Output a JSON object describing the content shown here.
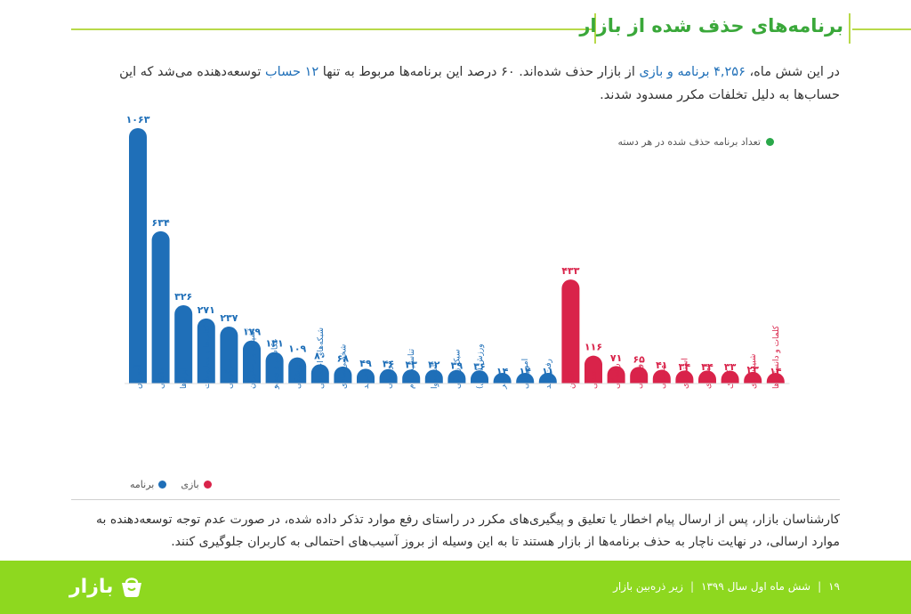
{
  "header": {
    "title": "برنامه‌های حذف شده از بازار"
  },
  "intro": {
    "part1": "در این شش ماه، ",
    "hl1": "۴,۲۵۶ برنامه و بازی",
    "part2": " از بازار حذف شده‌اند. ۶۰ درصد این برنامه‌ها مربوط به تنها ",
    "hl2": "۱۲ حساب",
    "part3": " توسعه‌دهنده می‌شد که این حساب‌ها به دلیل تخلفات مکرر مسدود شدند."
  },
  "legend_top": "تعداد برنامه حذف شده در هر دسته",
  "legend_bottom": {
    "apps": "برنامه",
    "games": "بازی"
  },
  "colors": {
    "apps": "#1f6fb8",
    "games": "#d9234a",
    "accent": "#8ed81f",
    "title": "#3aa83a"
  },
  "chart_data": {
    "type": "bar",
    "series": [
      {
        "name": "برنامه",
        "categories": [
          "آموزش",
          "مذهبی",
          "ابزارها",
          "کتاب‌ها و مطبوعات",
          "سرگرمی",
          "آشپزی و رستوران",
          "عکاسی و ویدیو",
          "پزشکی",
          "شبکه‌های اجتماعی",
          "شخصی‌سازی",
          "خرید",
          "موسیقی",
          "تناسب اندام",
          "آب‌وهوا",
          "سبک زندگی",
          "ورزش (بازی)",
          "سفر",
          "امورمالی",
          "رفت‌وآمد"
        ],
        "values": [
          1063,
          634,
          326,
          271,
          237,
          179,
          131,
          109,
          80,
          68,
          49,
          46,
          43,
          42,
          39,
          36,
          14,
          14,
          11
        ],
        "labels": [
          "۱۰۶۳",
          "۶۳۴",
          "۳۲۶",
          "۲۷۱",
          "۲۳۷",
          "۱۷۹",
          "۱۳۱",
          "۱۰۹",
          "۸۰",
          "۶۸",
          "۴۹",
          "۴۶",
          "۴۳",
          "۴۲",
          "۳۹",
          "۳۶",
          "۱۴",
          "۱۴",
          "۱۱"
        ]
      },
      {
        "name": "بازی",
        "categories": [
          "اکشن",
          "تفننی",
          "رانندگی",
          "ورزشی",
          "معمایی",
          "استراتژی",
          "امتیازی",
          "کودک",
          "شبیه‌سازی",
          "کلمات و دانستنی‌ها"
        ],
        "values": [
          433,
          116,
          71,
          65,
          41,
          34,
          34,
          33,
          23,
          14
        ],
        "labels": [
          "۴۳۳",
          "۱۱۶",
          "۷۱",
          "۶۵",
          "۴۱",
          "۳۴",
          "۳۴",
          "۳۳",
          "۲۳",
          "۱۴"
        ]
      }
    ],
    "ylim": [
      0,
      1100
    ]
  },
  "note": "کارشناسان بازار، پس از ارسال پیام اخطار یا تعلیق و پیگیری‌های مکرر در راستای رفع موارد تذکر داده شده، در صورت عدم توجه توسعه‌دهنده به موارد ارسالی، در نهایت ناچار به حذف برنامه‌ها از بازار هستند تا به این وسیله از بروز آسیب‌های احتمالی به کاربران جلوگیری کنند.",
  "footer": {
    "logo": "بازار",
    "page": "۱۹",
    "period": "شش ماه اول سال ۱۳۹۹",
    "report": "زیر ذره‌بین بازار"
  }
}
